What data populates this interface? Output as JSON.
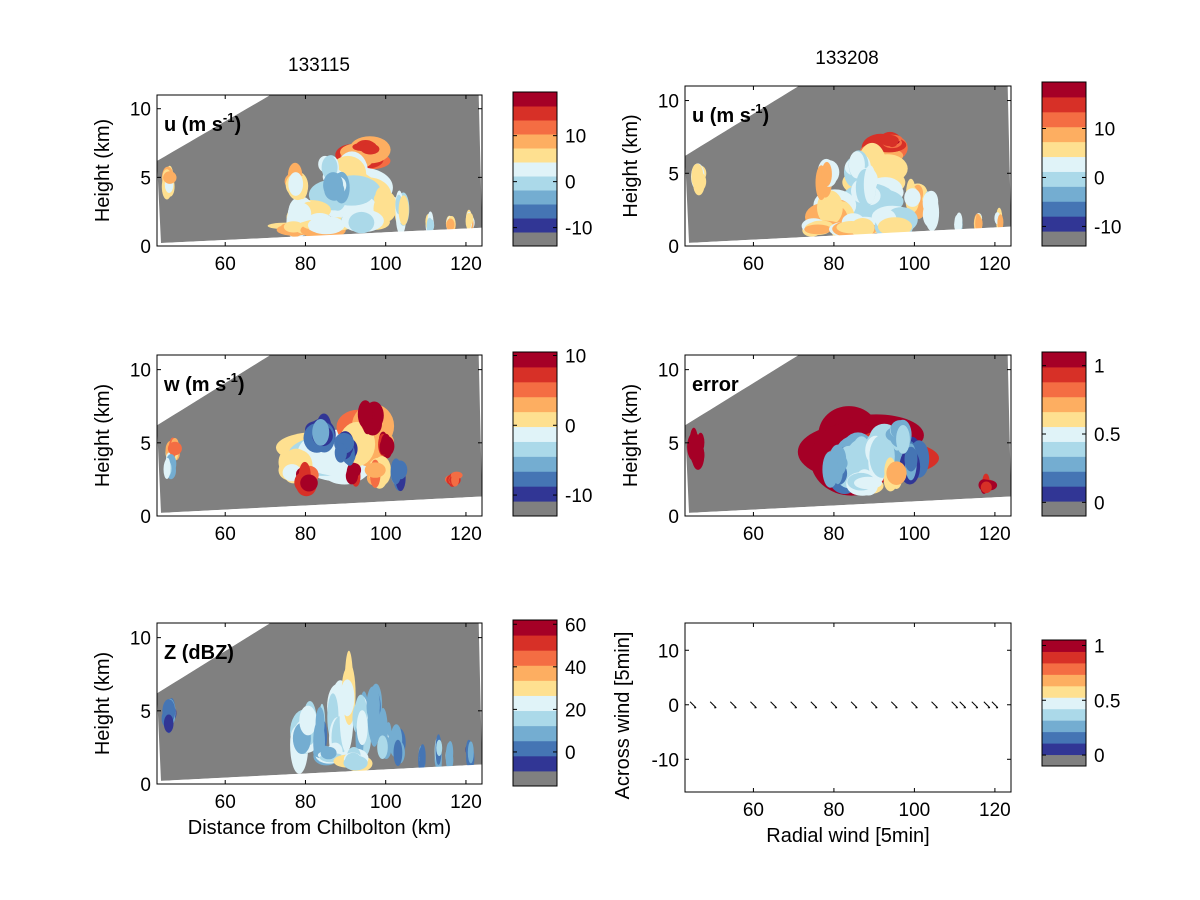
{
  "figure": {
    "background": "#ffffff",
    "mask_color": "#808080",
    "colormap": [
      "#808080",
      "#313695",
      "#4575b4",
      "#74add1",
      "#abd9e9",
      "#e0f3f8",
      "#fee090",
      "#fdae61",
      "#f46d43",
      "#d73027",
      "#a50026"
    ]
  },
  "chart_data": [
    {
      "type": "heatmap",
      "title": "133115",
      "panel_label": "u (m s",
      "panel_label_sup": "-1",
      "panel_label_end": ")",
      "xlabel": "",
      "ylabel": "Height (km)",
      "xlim": [
        43,
        124
      ],
      "ylim": [
        0,
        11
      ],
      "xticks": [
        60,
        80,
        100,
        120
      ],
      "yticks": [
        0,
        5,
        10
      ],
      "colorbar": {
        "ticks": [
          -10,
          0,
          10
        ],
        "range": [
          -14,
          19.5
        ]
      }
    },
    {
      "type": "heatmap",
      "title": "133208",
      "panel_label": "u (m s",
      "panel_label_sup": "-1",
      "panel_label_end": ")",
      "xlabel": "",
      "ylabel": "Height (km)",
      "xlim": [
        43,
        124
      ],
      "ylim": [
        0,
        11
      ],
      "xticks": [
        60,
        80,
        100,
        120
      ],
      "yticks": [
        0,
        5,
        10
      ],
      "colorbar": {
        "ticks": [
          -10,
          0,
          10
        ],
        "range": [
          -14,
          19.5
        ]
      }
    },
    {
      "type": "heatmap",
      "title": "",
      "panel_label": "w (m s",
      "panel_label_sup": "-1",
      "panel_label_end": ")",
      "xlabel": "",
      "ylabel": "Height (km)",
      "xlim": [
        43,
        124
      ],
      "ylim": [
        0,
        11
      ],
      "xticks": [
        60,
        80,
        100,
        120
      ],
      "yticks": [
        0,
        5,
        10
      ],
      "colorbar": {
        "ticks": [
          -10,
          0,
          10
        ],
        "range": [
          -13,
          10.5
        ]
      }
    },
    {
      "type": "heatmap",
      "title": "",
      "panel_label": "error",
      "panel_label_sup": "",
      "panel_label_end": "",
      "xlabel": "",
      "ylabel": "Height (km)",
      "xlim": [
        43,
        124
      ],
      "ylim": [
        0,
        11
      ],
      "xticks": [
        60,
        80,
        100,
        120
      ],
      "yticks": [
        0,
        5,
        10
      ],
      "colorbar": {
        "ticks": [
          0,
          0.5,
          1
        ],
        "range": [
          -0.1,
          1.1
        ]
      }
    },
    {
      "type": "heatmap",
      "title": "",
      "panel_label": "Z (dBZ)",
      "panel_label_sup": "",
      "panel_label_end": "",
      "xlabel": "Distance from Chilbolton (km)",
      "ylabel": "Height (km)",
      "xlim": [
        43,
        124
      ],
      "ylim": [
        0,
        11
      ],
      "xticks": [
        60,
        80,
        100,
        120
      ],
      "yticks": [
        0,
        5,
        10
      ],
      "colorbar": {
        "ticks": [
          0,
          20,
          40,
          60
        ],
        "range": [
          -16,
          62
        ]
      }
    },
    {
      "type": "scatter",
      "title": "",
      "xlabel": "Radial wind [5min]",
      "ylabel": "Across wind [5min]",
      "xlim": [
        43,
        124
      ],
      "ylim": [
        -16,
        15
      ],
      "xticks": [
        60,
        80,
        100,
        120
      ],
      "yticks": [
        -10,
        0,
        10
      ],
      "x": [
        45,
        50,
        55,
        60,
        65,
        70,
        75,
        80,
        85,
        90,
        95,
        100,
        105,
        110,
        112,
        115,
        118,
        120
      ],
      "y": [
        0,
        0,
        0,
        0,
        0,
        0,
        0,
        0,
        0,
        0,
        0,
        0,
        0,
        0,
        0,
        0,
        0,
        0
      ],
      "colorbar": {
        "ticks": [
          0,
          0.5,
          1
        ],
        "range": [
          -0.1,
          1.05
        ]
      }
    }
  ]
}
